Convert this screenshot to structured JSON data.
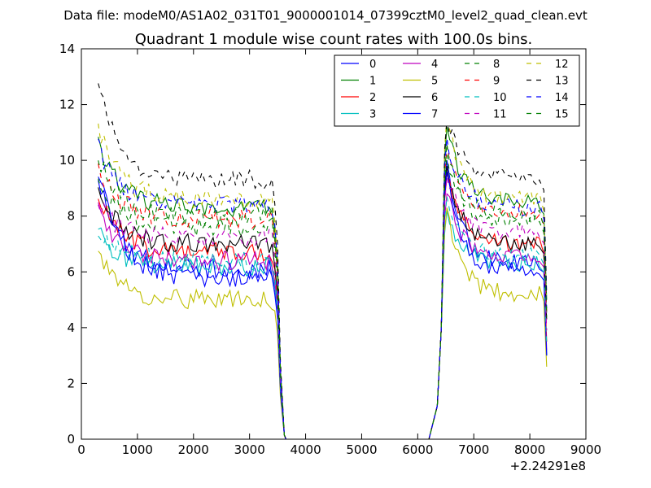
{
  "chart_data": {
    "type": "line",
    "suptitle": "Data file: modeM0/AS1A02_031T01_9000001014_07399cztM0_level2_quad_clean.evt",
    "title": "Quadrant 1 module wise count rates with 100.0s bins.",
    "xlabel": "",
    "ylabel": "",
    "x_offset_label": "+2.24291e8",
    "xlim": [
      0,
      9000
    ],
    "ylim": [
      0,
      14
    ],
    "x_ticks": [
      0,
      1000,
      2000,
      3000,
      4000,
      5000,
      6000,
      7000,
      8000,
      9000
    ],
    "y_ticks": [
      0,
      2,
      4,
      6,
      8,
      10,
      12,
      14
    ],
    "legend_position": "top-right",
    "colors": {
      "blue": "#0000ff",
      "green": "#008000",
      "red": "#ff0000",
      "cyan": "#00bfbf",
      "magenta": "#bf00bf",
      "olive": "#bfbf00",
      "black": "#000000"
    },
    "series": [
      {
        "name": "0",
        "color": "#0000ff",
        "dash": "solid",
        "base1": 6.1,
        "start1": 9.3,
        "base2": 6.3,
        "peak2": 10.0,
        "end2": 3.0
      },
      {
        "name": "1",
        "color": "#008000",
        "dash": "solid",
        "base1": 8.3,
        "start1": 10.6,
        "base2": 8.5,
        "peak2": 11.2,
        "end2": 5.0
      },
      {
        "name": "2",
        "color": "#ff0000",
        "dash": "solid",
        "base1": 6.7,
        "start1": 8.8,
        "base2": 7.0,
        "peak2": 9.5,
        "end2": 3.5
      },
      {
        "name": "3",
        "color": "#00bfbf",
        "dash": "solid",
        "base1": 6.2,
        "start1": 7.4,
        "base2": 6.3,
        "peak2": 8.2,
        "end2": 3.0
      },
      {
        "name": "4",
        "color": "#bf00bf",
        "dash": "solid",
        "base1": 6.4,
        "start1": 8.3,
        "base2": 6.5,
        "peak2": 8.8,
        "end2": 3.2
      },
      {
        "name": "5",
        "color": "#bfbf00",
        "dash": "solid",
        "base1": 5.0,
        "start1": 6.7,
        "base2": 5.2,
        "peak2": 8.3,
        "end2": 2.6
      },
      {
        "name": "6",
        "color": "#000000",
        "dash": "solid",
        "base1": 7.0,
        "start1": 8.9,
        "base2": 7.0,
        "peak2": 9.8,
        "end2": 4.3
      },
      {
        "name": "7",
        "color": "#0000ff",
        "dash": "solid",
        "base1": 5.8,
        "start1": 9.6,
        "base2": 6.0,
        "peak2": 9.6,
        "end2": 3.0
      },
      {
        "name": "8",
        "color": "#008000",
        "dash": "dashed",
        "base1": 7.6,
        "start1": 9.2,
        "base2": 7.8,
        "peak2": 10.2,
        "end2": 4.5
      },
      {
        "name": "9",
        "color": "#ff0000",
        "dash": "dashed",
        "base1": 7.9,
        "start1": 9.8,
        "base2": 8.1,
        "peak2": 10.5,
        "end2": 4.6
      },
      {
        "name": "10",
        "color": "#00bfbf",
        "dash": "dashed",
        "base1": 6.4,
        "start1": 7.6,
        "base2": 6.6,
        "peak2": 8.7,
        "end2": 3.4
      },
      {
        "name": "11",
        "color": "#bf00bf",
        "dash": "dashed",
        "base1": 7.2,
        "start1": 8.4,
        "base2": 7.4,
        "peak2": 9.4,
        "end2": 3.9
      },
      {
        "name": "12",
        "color": "#bfbf00",
        "dash": "dashed",
        "base1": 8.6,
        "start1": 11.2,
        "base2": 8.6,
        "peak2": 11.6,
        "end2": 4.9
      },
      {
        "name": "13",
        "color": "#000000",
        "dash": "dashed",
        "base1": 9.3,
        "start1": 12.7,
        "base2": 9.4,
        "peak2": 11.5,
        "end2": 5.2
      },
      {
        "name": "14",
        "color": "#0000ff",
        "dash": "dashed",
        "base1": 8.4,
        "start1": 10.5,
        "base2": 8.3,
        "peak2": 10.8,
        "end2": 4.7
      },
      {
        "name": "15",
        "color": "#008000",
        "dash": "dashed",
        "base1": 8.0,
        "start1": 10.1,
        "base2": 8.0,
        "peak2": 10.6,
        "end2": 4.4
      }
    ]
  }
}
